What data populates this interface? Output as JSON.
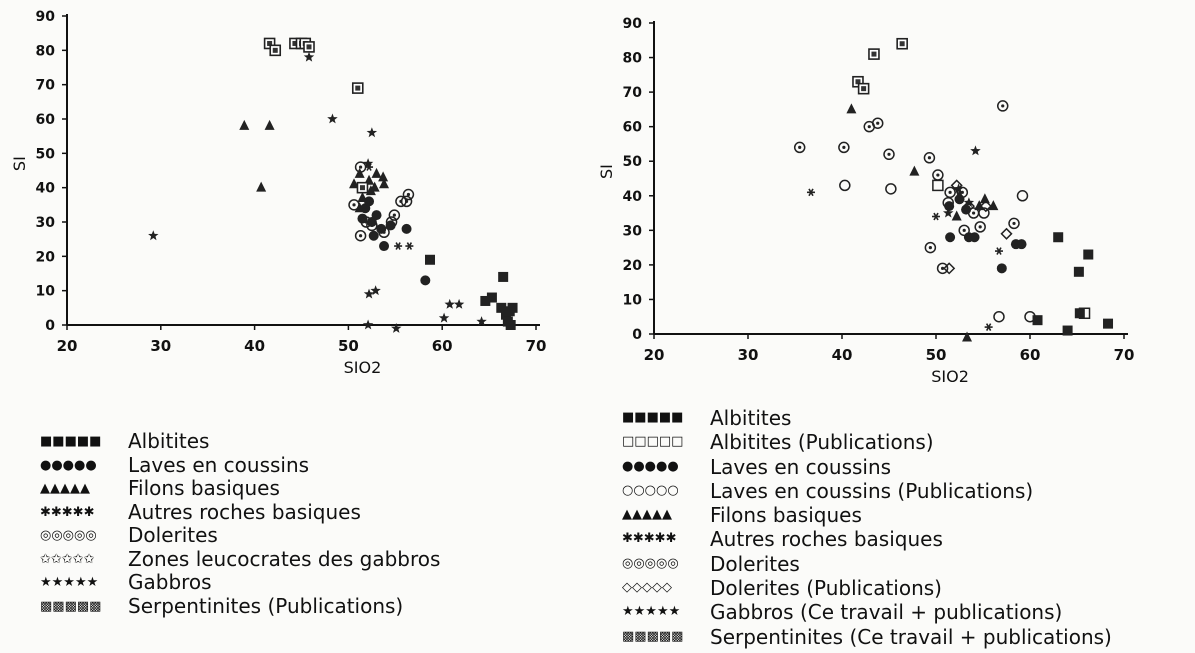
{
  "chart_data": [
    {
      "type": "scatter",
      "xlabel": "SIO2",
      "ylabel": "SI",
      "xlim": [
        20,
        70
      ],
      "ylim": [
        0,
        90
      ],
      "xticks": [
        "20",
        "30",
        "40",
        "50",
        "60",
        "70"
      ],
      "yticks": [
        "0",
        "10",
        "20",
        "30",
        "40",
        "50",
        "60",
        "70",
        "80",
        "90"
      ],
      "legend_position": "below",
      "series": [
        {
          "name": "Albitites",
          "marker": "square",
          "points": [
            [
              58.7,
              19
            ],
            [
              64.6,
              7
            ],
            [
              65.3,
              8
            ],
            [
              66.5,
              14
            ],
            [
              66.3,
              5
            ],
            [
              66.8,
              3
            ],
            [
              67.2,
              4
            ],
            [
              67.5,
              5
            ],
            [
              67.0,
              1
            ],
            [
              67.3,
              0
            ]
          ]
        },
        {
          "name": "Laves en coussins",
          "marker": "circle",
          "points": [
            [
              51.5,
              31
            ],
            [
              52.5,
              30
            ],
            [
              53.5,
              28
            ],
            [
              53,
              32
            ],
            [
              52.7,
              26
            ],
            [
              54.5,
              29
            ],
            [
              56.2,
              28
            ],
            [
              51.8,
              34
            ],
            [
              52.2,
              36
            ],
            [
              58.2,
              13
            ],
            [
              53.8,
              23
            ]
          ]
        },
        {
          "name": "Filons basiques",
          "marker": "triangle",
          "points": [
            [
              38.9,
              58
            ],
            [
              41.6,
              58
            ],
            [
              40.7,
              40
            ],
            [
              50.6,
              41
            ],
            [
              51.2,
              44
            ],
            [
              52.2,
              42
            ],
            [
              53,
              44
            ],
            [
              53.7,
              43
            ],
            [
              52.8,
              40
            ],
            [
              53.8,
              41
            ],
            [
              52.4,
              39
            ],
            [
              51.5,
              37
            ],
            [
              51.2,
              34
            ]
          ]
        },
        {
          "name": "Autres roches basiques",
          "marker": "asterisk",
          "points": [
            [
              52.2,
              46
            ],
            [
              55.3,
              23
            ],
            [
              56.5,
              23
            ]
          ]
        },
        {
          "name": "Dolerites",
          "marker": "dotcircle",
          "points": [
            [
              51.3,
              46
            ],
            [
              50.6,
              35
            ],
            [
              51.3,
              26
            ],
            [
              52.5,
              29
            ],
            [
              53.8,
              27
            ],
            [
              54.6,
              30
            ],
            [
              56.4,
              38
            ],
            [
              56.2,
              36
            ],
            [
              54.9,
              32
            ],
            [
              51.9,
              30
            ],
            [
              55.6,
              36
            ]
          ]
        },
        {
          "name": "Zones leucocrates des gabbros",
          "marker": "star",
          "points": [
            [
              52.1,
              0
            ],
            [
              55.1,
              -1
            ],
            [
              52.2,
              9
            ],
            [
              52.9,
              10
            ],
            [
              60.2,
              2
            ],
            [
              60.8,
              6
            ],
            [
              61.8,
              6
            ]
          ]
        },
        {
          "name": "Gabbros",
          "marker": "star",
          "points": [
            [
              29.2,
              26
            ],
            [
              45.8,
              78
            ],
            [
              48.3,
              60
            ],
            [
              52.5,
              56
            ],
            [
              52.1,
              47
            ],
            [
              64.2,
              1
            ]
          ]
        },
        {
          "name": "Serpentinites (Publications)",
          "marker": "patsquare",
          "points": [
            [
              41.6,
              82
            ],
            [
              42.2,
              80
            ],
            [
              44.3,
              82
            ],
            [
              45.0,
              82
            ],
            [
              45.4,
              82
            ],
            [
              45.8,
              81
            ],
            [
              51,
              69
            ],
            [
              51.5,
              40
            ]
          ]
        }
      ]
    },
    {
      "type": "scatter",
      "xlabel": "SIO2",
      "ylabel": "SI",
      "xlim": [
        20,
        70
      ],
      "ylim": [
        0,
        90
      ],
      "xticks": [
        "20",
        "30",
        "40",
        "50",
        "60",
        "70"
      ],
      "yticks": [
        "0",
        "10",
        "20",
        "30",
        "40",
        "50",
        "60",
        "70",
        "80",
        "90"
      ],
      "legend_position": "below",
      "series": [
        {
          "name": "Albitites",
          "marker": "square",
          "points": [
            [
              60.8,
              4
            ],
            [
              63.0,
              28
            ],
            [
              64.0,
              1
            ],
            [
              65.2,
              18
            ],
            [
              65.3,
              6
            ],
            [
              66.2,
              23
            ],
            [
              68.3,
              3
            ]
          ]
        },
        {
          "name": "Albitites (Publications)",
          "marker": "opensquare",
          "points": [
            [
              65.8,
              6
            ],
            [
              50.2,
              43
            ]
          ]
        },
        {
          "name": "Laves en coussins",
          "marker": "circle",
          "points": [
            [
              51.5,
              28
            ],
            [
              52.5,
              39
            ],
            [
              53.2,
              36
            ],
            [
              53.5,
              28
            ],
            [
              54.1,
              28
            ],
            [
              57.0,
              19
            ],
            [
              58.5,
              26
            ],
            [
              59.1,
              26
            ],
            [
              51.4,
              37
            ]
          ]
        },
        {
          "name": "Laves en coussins (Publications)",
          "marker": "opencircle",
          "points": [
            [
              40.3,
              43
            ],
            [
              45.2,
              42
            ],
            [
              51.3,
              38
            ],
            [
              55.1,
              35
            ],
            [
              56.7,
              5
            ],
            [
              59.2,
              40
            ],
            [
              60.0,
              5
            ]
          ]
        },
        {
          "name": "Filons basiques",
          "marker": "triangle",
          "points": [
            [
              41.0,
              65
            ],
            [
              47.7,
              47
            ],
            [
              52.2,
              34
            ],
            [
              54.6,
              37
            ],
            [
              53.3,
              -1
            ],
            [
              52.5,
              40
            ],
            [
              55.2,
              39
            ],
            [
              56.1,
              37
            ]
          ]
        },
        {
          "name": "Autres roches basiques",
          "marker": "asterisk",
          "points": [
            [
              36.7,
              41
            ],
            [
              50.0,
              34
            ],
            [
              56.7,
              24
            ],
            [
              55.6,
              2
            ]
          ]
        },
        {
          "name": "Dolerites",
          "marker": "dotcircle",
          "points": [
            [
              35.5,
              54
            ],
            [
              40.2,
              54
            ],
            [
              42.9,
              60
            ],
            [
              43.8,
              61
            ],
            [
              45.0,
              52
            ],
            [
              49.3,
              51
            ],
            [
              50.2,
              46
            ],
            [
              51.5,
              41
            ],
            [
              52.8,
              41
            ],
            [
              53.0,
              30
            ],
            [
              54.0,
              35
            ],
            [
              54.7,
              31
            ],
            [
              57.1,
              66
            ],
            [
              58.3,
              32
            ],
            [
              49.4,
              25
            ],
            [
              50.7,
              19
            ]
          ]
        },
        {
          "name": "Dolerites (Publications)",
          "marker": "diamond",
          "points": [
            [
              51.4,
              19
            ],
            [
              52.2,
              43
            ],
            [
              53.5,
              37
            ],
            [
              55.3,
              37
            ],
            [
              57.5,
              29
            ]
          ]
        },
        {
          "name": "Gabbros (Ce travail + publications)",
          "marker": "star",
          "points": [
            [
              54.2,
              53
            ],
            [
              52.4,
              42
            ],
            [
              51.3,
              35
            ],
            [
              53.5,
              38
            ]
          ]
        },
        {
          "name": "Serpentinites (Ce travail + publications)",
          "marker": "patsquare",
          "points": [
            [
              41.7,
              73
            ],
            [
              42.3,
              71
            ],
            [
              43.4,
              81
            ],
            [
              46.4,
              84
            ]
          ]
        }
      ]
    }
  ],
  "legend_left": [
    {
      "symbol": "■■■■■",
      "label": "Albitites"
    },
    {
      "symbol": "●●●●●",
      "label": "Laves en coussins"
    },
    {
      "symbol": "▲▲▲▲▲",
      "label": "Filons basiques"
    },
    {
      "symbol": "✱✱✱✱✱",
      "label": "Autres roches basiques"
    },
    {
      "symbol": "◎◎◎◎◎",
      "label": "Dolerites"
    },
    {
      "symbol": "✩✩✩✩✩",
      "label": "Zones leucocrates des gabbros"
    },
    {
      "symbol": "★★★★★",
      "label": "Gabbros"
    },
    {
      "symbol": "▩▩▩▩▩",
      "label": "Serpentinites (Publications)"
    }
  ],
  "legend_right": [
    {
      "symbol": "■■■■■",
      "label": "Albitites"
    },
    {
      "symbol": "□□□□□",
      "label": "Albitites (Publications)"
    },
    {
      "symbol": "●●●●●",
      "label": "Laves en coussins"
    },
    {
      "symbol": "○○○○○",
      "label": "Laves en coussins (Publications)"
    },
    {
      "symbol": "▲▲▲▲▲",
      "label": "Filons basiques"
    },
    {
      "symbol": "✱✱✱✱✱",
      "label": "Autres roches basiques"
    },
    {
      "symbol": "◎◎◎◎◎",
      "label": "Dolerites"
    },
    {
      "symbol": "◇◇◇◇◇",
      "label": "Dolerites (Publications)"
    },
    {
      "symbol": "★★★★★",
      "label": "Gabbros (Ce travail + publications)"
    },
    {
      "symbol": "▩▩▩▩▩",
      "label": "Serpentinites (Ce travail + publications)"
    }
  ]
}
